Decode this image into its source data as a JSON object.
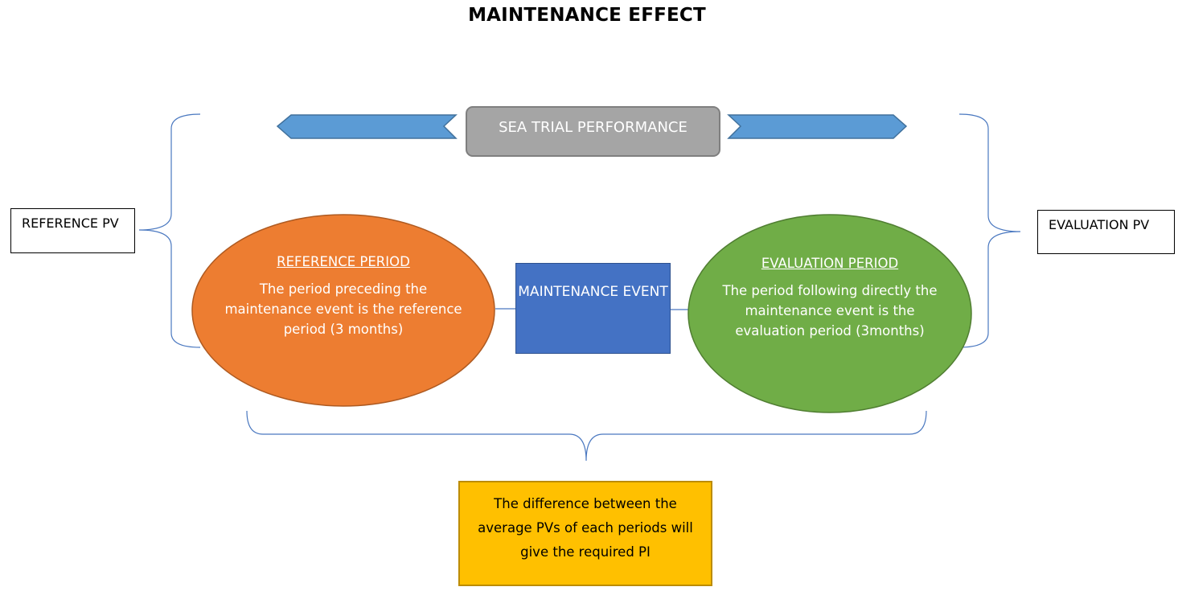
{
  "title": "MAINTENANCE EFFECT",
  "sea_trial": "SEA TRIAL PERFORMANCE",
  "reference_pv": "REFERENCE PV",
  "evaluation_pv": "EVALUATION PV",
  "reference_period": {
    "heading": "REFERENCE PERIOD",
    "text": "The period preceding the maintenance event is the reference period (3 months)"
  },
  "maintenance_event": "MAINTENANCE EVENT",
  "evaluation_period": {
    "heading": "EVALUATION PERIOD",
    "text": "The period following directly the maintenance event is the evaluation period (3months)"
  },
  "result": "The difference between the average PVs of each periods will give the required PI",
  "colors": {
    "arrow_fill": "#5b9bd5",
    "arrow_stroke": "#41719c",
    "brace": "#4a78c0",
    "connector": "#4a78c0",
    "sea_trial_fill": "#a5a5a5",
    "reference_fill": "#ed7d31",
    "reference_stroke": "#ae5a21",
    "maintenance_fill": "#4472c4",
    "evaluation_fill": "#70ad47",
    "evaluation_stroke": "#507e32",
    "result_fill": "#ffc000"
  }
}
